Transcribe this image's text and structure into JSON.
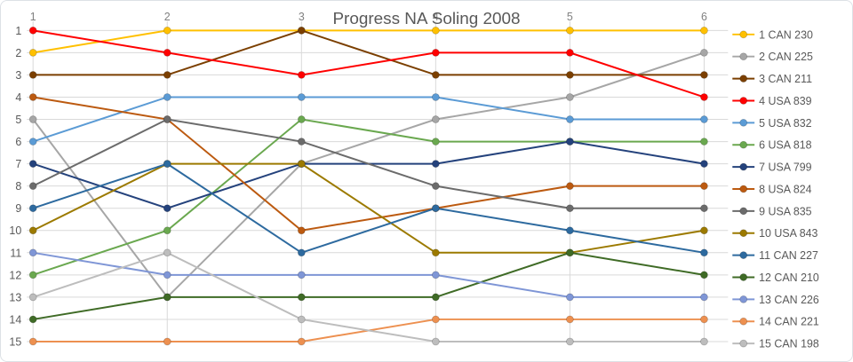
{
  "chart_data": {
    "type": "line",
    "title": "Progress NA Soling 2008",
    "x_axis": {
      "position": "top",
      "tick_labels": [
        "1",
        "2",
        "3",
        "4",
        "5",
        "6"
      ]
    },
    "y_axis": {
      "position": "left",
      "inverted": true,
      "range": [
        1,
        15
      ],
      "tick_labels": [
        "1",
        "2",
        "3",
        "4",
        "5",
        "6",
        "7",
        "8",
        "9",
        "10",
        "11",
        "12",
        "13",
        "14",
        "15"
      ]
    },
    "grid": true,
    "legend_position": "right",
    "marker": "circle",
    "series": [
      {
        "name": "1 CAN 230",
        "color": "#FFC000",
        "values": [
          2,
          1,
          1,
          1,
          1,
          1
        ]
      },
      {
        "name": "2 CAN 225",
        "color": "#A6A6A6",
        "values": [
          5,
          13,
          7,
          5,
          4,
          2
        ]
      },
      {
        "name": "3 CAN 211",
        "color": "#7B3F00",
        "values": [
          3,
          3,
          1,
          3,
          3,
          3
        ]
      },
      {
        "name": "4 USA 839",
        "color": "#FF0000",
        "values": [
          1,
          2,
          3,
          2,
          2,
          4
        ]
      },
      {
        "name": "5 USA 832",
        "color": "#5B9BD5",
        "values": [
          6,
          4,
          4,
          4,
          5,
          5
        ]
      },
      {
        "name": "6 USA 818",
        "color": "#6AA84F",
        "values": [
          12,
          10,
          5,
          6,
          6,
          6
        ]
      },
      {
        "name": "7 USA 799",
        "color": "#24427C",
        "values": [
          7,
          9,
          7,
          7,
          6,
          7
        ]
      },
      {
        "name": "8 USA 824",
        "color": "#BC5A10",
        "values": [
          4,
          5,
          10,
          9,
          8,
          8
        ]
      },
      {
        "name": "9 USA 835",
        "color": "#6B6B6B",
        "values": [
          8,
          5,
          6,
          8,
          9,
          9
        ]
      },
      {
        "name": "10 USA 843",
        "color": "#9C7A00",
        "values": [
          10,
          7,
          7,
          11,
          11,
          10
        ]
      },
      {
        "name": "11 CAN 227",
        "color": "#2D6A9F",
        "values": [
          9,
          7,
          11,
          9,
          10,
          11
        ]
      },
      {
        "name": "12 CAN 210",
        "color": "#3F6B26",
        "values": [
          14,
          13,
          13,
          13,
          11,
          12
        ]
      },
      {
        "name": "13 CAN 226",
        "color": "#7F96D6",
        "values": [
          11,
          12,
          12,
          12,
          13,
          13
        ]
      },
      {
        "name": "14 CAN 221",
        "color": "#ED9050",
        "values": [
          15,
          15,
          15,
          14,
          14,
          14
        ]
      },
      {
        "name": "15 CAN 198",
        "color": "#BDBDBD",
        "values": [
          13,
          11,
          14,
          15,
          15,
          15
        ]
      }
    ]
  },
  "style": {
    "grid_color": "#D9D9D9",
    "title_color": "#595959",
    "x_tick_color": "#808080",
    "y_tick_color": "#595959",
    "legend_text_color": "#595959",
    "background": "#FFFFFF",
    "frame_border": "#DDE1E6"
  }
}
